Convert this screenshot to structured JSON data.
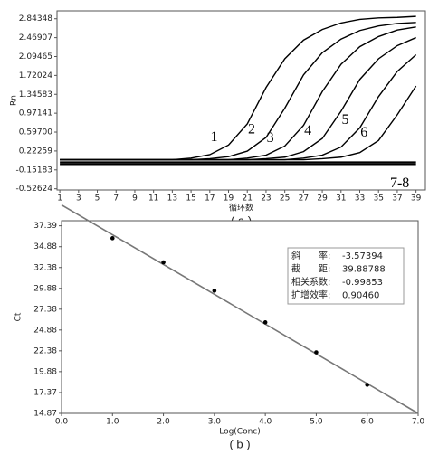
{
  "chart_data": [
    {
      "type": "line",
      "caption": "( a )",
      "y_label": "Rn",
      "x_label": "循环数",
      "x": [
        1,
        3,
        5,
        7,
        9,
        11,
        13,
        15,
        17,
        19,
        21,
        23,
        25,
        27,
        29,
        31,
        33,
        35,
        37,
        39
      ],
      "xlim": [
        0.7,
        40
      ],
      "xticks": [
        1,
        3,
        5,
        7,
        9,
        11,
        13,
        15,
        17,
        19,
        21,
        23,
        25,
        27,
        29,
        31,
        33,
        35,
        37,
        39
      ],
      "ylim": [
        -0.55,
        3.0
      ],
      "yticks": [
        2.84348,
        2.46907,
        2.09465,
        1.72024,
        1.34583,
        0.97141,
        {
          "value": 0.597,
          "label": "0.59700"
        },
        0.22259,
        -0.15183,
        -0.52624
      ],
      "series": [
        {
          "name": "1",
          "color": "#000000",
          "values": [
            0.05,
            0.05,
            0.05,
            0.05,
            0.05,
            0.05,
            0.05,
            0.08,
            0.15,
            0.34,
            0.76,
            1.48,
            2.05,
            2.42,
            2.63,
            2.76,
            2.83,
            2.86,
            2.87,
            2.89
          ]
        },
        {
          "name": "2",
          "color": "#000000",
          "values": [
            0.05,
            0.05,
            0.05,
            0.05,
            0.05,
            0.05,
            0.05,
            0.05,
            0.07,
            0.11,
            0.22,
            0.49,
            1.07,
            1.73,
            2.17,
            2.44,
            2.61,
            2.7,
            2.75,
            2.77
          ]
        },
        {
          "name": "3",
          "color": "#000000",
          "values": [
            0.05,
            0.05,
            0.05,
            0.05,
            0.05,
            0.05,
            0.05,
            0.05,
            0.05,
            0.05,
            0.08,
            0.14,
            0.32,
            0.73,
            1.4,
            1.94,
            2.29,
            2.49,
            2.62,
            2.68
          ]
        },
        {
          "name": "4",
          "color": "#000000",
          "values": [
            0.05,
            0.05,
            0.05,
            0.05,
            0.05,
            0.05,
            0.05,
            0.05,
            0.05,
            0.05,
            0.05,
            0.07,
            0.1,
            0.21,
            0.47,
            1.01,
            1.64,
            2.05,
            2.31,
            2.47
          ]
        },
        {
          "name": "5",
          "color": "#000000",
          "values": [
            0.05,
            0.05,
            0.05,
            0.05,
            0.05,
            0.05,
            0.05,
            0.05,
            0.05,
            0.05,
            0.05,
            0.05,
            0.05,
            0.08,
            0.14,
            0.3,
            0.68,
            1.3,
            1.8,
            2.13
          ]
        },
        {
          "name": "6",
          "color": "#000000",
          "values": [
            0.05,
            0.05,
            0.05,
            0.05,
            0.05,
            0.05,
            0.05,
            0.05,
            0.05,
            0.05,
            0.05,
            0.05,
            0.05,
            0.05,
            0.07,
            0.1,
            0.19,
            0.43,
            0.94,
            1.51
          ]
        },
        {
          "name": "7-8",
          "color": "#000000",
          "values": [
            0.0,
            0.0,
            0.0,
            0.0,
            0.0,
            0.0,
            0.0,
            0.0,
            0.0,
            0.0,
            0.0,
            0.0,
            0.0,
            0.0,
            0.0,
            0.0,
            0.0,
            0.0,
            0.0,
            0.0
          ]
        },
        {
          "color": "#000000",
          "values": [
            -0.04,
            -0.04,
            -0.04,
            -0.04,
            -0.04,
            -0.04,
            -0.04,
            -0.04,
            -0.04,
            -0.04,
            -0.04,
            -0.04,
            -0.04,
            -0.04,
            -0.04,
            -0.04,
            -0.04,
            -0.04,
            -0.04,
            -0.04
          ]
        }
      ]
    },
    {
      "type": "scatter",
      "caption": "( b )",
      "y_label": "Ct",
      "x_label": "Log(Conc)",
      "x": [
        1,
        2,
        3,
        4,
        5,
        6
      ],
      "values": [
        35.9,
        33.0,
        29.6,
        25.8,
        22.2,
        18.3
      ],
      "color": "#000000",
      "line_color": "#777777",
      "xlim": [
        0,
        7
      ],
      "xticks": [
        {
          "value": 0,
          "label": "0.0"
        },
        {
          "value": 1,
          "label": "1.0"
        },
        {
          "value": 2,
          "label": "2.0"
        },
        {
          "value": 3,
          "label": "3.0"
        },
        {
          "value": 4,
          "label": "4.0"
        },
        {
          "value": 5,
          "label": "5.0"
        },
        {
          "value": 6,
          "label": "6.0"
        },
        {
          "value": 7,
          "label": "7.0"
        }
      ],
      "ylim": [
        14.87,
        38.0
      ],
      "yticks": [
        37.39,
        34.88,
        32.38,
        29.88,
        27.38,
        24.88,
        22.38,
        19.88,
        17.37,
        14.87
      ],
      "fit_stats": [
        {
          "label": "斜　　率:",
          "value": -3.57394
        },
        {
          "label": "截　　距:",
          "value": 39.88788
        },
        {
          "label": "相关系数:",
          "value": -0.99853
        },
        {
          "label": "扩增效率:",
          "value": 0.9046,
          "value_label": "0.90460"
        }
      ]
    }
  ]
}
